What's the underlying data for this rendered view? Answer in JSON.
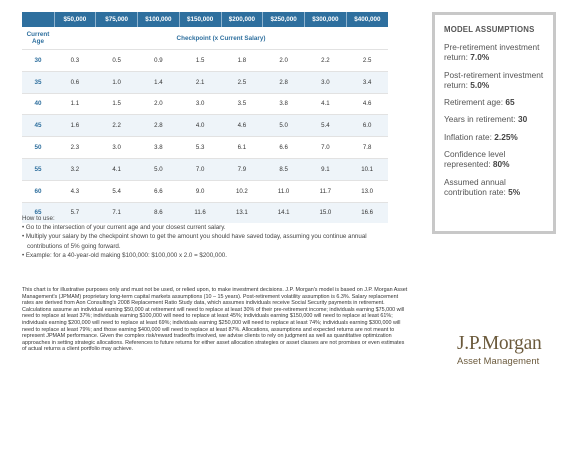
{
  "table": {
    "age_header_line1": "Current",
    "age_header_line2": "Age",
    "checkpoint_header": "Checkpoint (x Current Salary)",
    "salaries": [
      "$50,000",
      "$75,000",
      "$100,000",
      "$150,000",
      "$200,000",
      "$250,000",
      "$300,000",
      "$400,000"
    ],
    "rows": [
      {
        "age": "30",
        "values": [
          "0.3",
          "0.5",
          "0.9",
          "1.5",
          "1.8",
          "2.0",
          "2.2",
          "2.5"
        ]
      },
      {
        "age": "35",
        "values": [
          "0.6",
          "1.0",
          "1.4",
          "2.1",
          "2.5",
          "2.8",
          "3.0",
          "3.4"
        ]
      },
      {
        "age": "40",
        "values": [
          "1.1",
          "1.5",
          "2.0",
          "3.0",
          "3.5",
          "3.8",
          "4.1",
          "4.6"
        ]
      },
      {
        "age": "45",
        "values": [
          "1.6",
          "2.2",
          "2.8",
          "4.0",
          "4.6",
          "5.0",
          "5.4",
          "6.0"
        ]
      },
      {
        "age": "50",
        "values": [
          "2.3",
          "3.0",
          "3.8",
          "5.3",
          "6.1",
          "6.6",
          "7.0",
          "7.8"
        ]
      },
      {
        "age": "55",
        "values": [
          "3.2",
          "4.1",
          "5.0",
          "7.0",
          "7.9",
          "8.5",
          "9.1",
          "10.1"
        ]
      },
      {
        "age": "60",
        "values": [
          "4.3",
          "5.4",
          "6.6",
          "9.0",
          "10.2",
          "11.0",
          "11.7",
          "13.0"
        ]
      },
      {
        "age": "65",
        "values": [
          "5.7",
          "7.1",
          "8.6",
          "11.6",
          "13.1",
          "14.1",
          "15.0",
          "16.6"
        ]
      }
    ]
  },
  "howto": {
    "title": "How to use:",
    "bullets": [
      "• Go to the intersection of your current age and your closest current salary.",
      "• Multiply your salary by the checkpoint shown to get the amount you should have saved today, assuming you continue annual contributions of 5% going forward.",
      "• Example: for a 40-year-old making $100,000: $100,000 x 2.0 = $200,000."
    ]
  },
  "assumptions": {
    "title": "MODEL ASSUMPTIONS",
    "items": [
      {
        "label": "Pre-retirement investment return: ",
        "value": "7.0%"
      },
      {
        "label": "Post-retirement investment return: ",
        "value": "5.0%"
      },
      {
        "label": "Retirement age: ",
        "value": "65"
      },
      {
        "label": "Years in retirement: ",
        "value": "30"
      },
      {
        "label": "Inflation rate: ",
        "value": "2.25%"
      },
      {
        "label": "Confidence level represented: ",
        "value": "80%"
      },
      {
        "label": "Assumed annual contribution rate: ",
        "value": "5%"
      }
    ]
  },
  "disclaimer": "This chart is for illustrative purposes only and must not be used, or relied upon, to make investment decisions. J.P. Morgan's model is based on J.P. Morgan Asset Management's (JPMAM) proprietary long-term capital markets assumptions (10 – 15 years). Post-retirement volatility assumption is 6.3%. Salary replacement rates are derived from Aon Consulting's 2008 Replacement Ratio Study data, which assumes individuals receive Social Security payments in retirement. Calculations assume an individual earning $50,000 at retirement will need to replace at least 30% of their pre-retirement income; individuals earning $75,000 will need to replace at least 37%; individuals earning $100,000 will need to replace at least 45%; individuals earning $150,000 will need to replace at least 61%; individuals earning $200,000 will need to replace at least 69%; individuals earning $250,000 will need to replace at least 74%; individuals earning $300,000 will need to replace at least 79%; and those earning $400,000 will need to replace at least 87%. Allocations, assumptions and expected returns are not meant to represent JPMAM performance. Given the complex risk/reward tradeoffs involved, we advise clients to rely on judgment as well as quantitative optimization approaches in setting strategic allocations. References to future returns for either asset allocation strategies or asset classes are not promises or even estimates of actual returns a client portfolio may achieve.",
  "logo": {
    "name": "J.P.Morgan",
    "subtitle": "Asset Management"
  },
  "colors": {
    "header_blue": "#2e6f9e",
    "logo_brown": "#6b5a3c"
  }
}
